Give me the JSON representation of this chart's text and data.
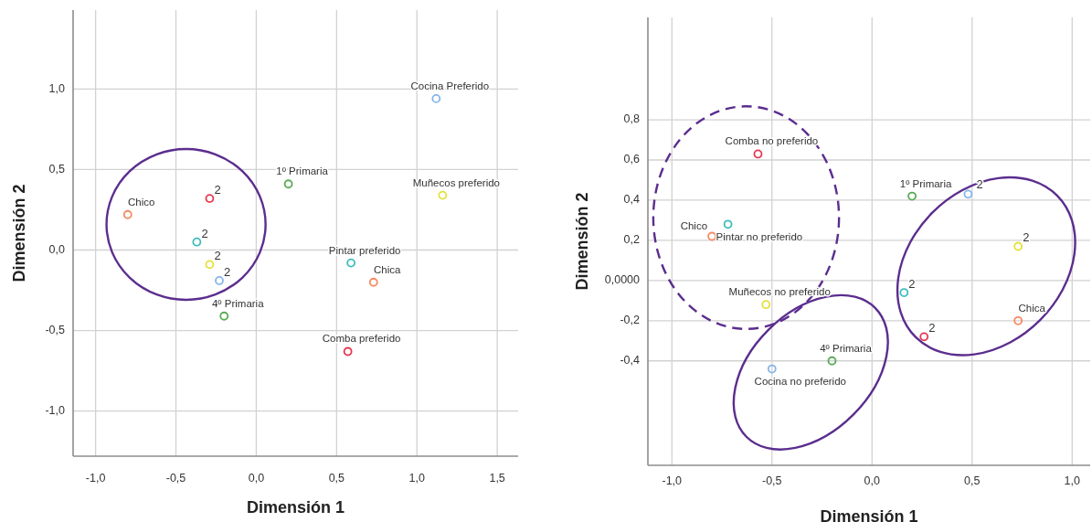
{
  "chart_data": [
    {
      "type": "scatter",
      "xlabel": "Dimensión 1",
      "ylabel": "Dimensión 2",
      "xlim": [
        -1.14,
        1.63
      ],
      "ylim": [
        -1.28,
        1.49
      ],
      "xticks": [
        {
          "value": -1,
          "label": "-1,0"
        },
        {
          "value": -0.5,
          "label": "-0,5"
        },
        {
          "value": 0,
          "label": "0,0"
        },
        {
          "value": 0.5,
          "label": "0,5"
        },
        {
          "value": 1,
          "label": "1,0"
        },
        {
          "value": 1.5,
          "label": "1,5"
        }
      ],
      "yticks": [
        {
          "value": -1,
          "label": "-1,0"
        },
        {
          "value": -0.5,
          "label": "-0,5"
        },
        {
          "value": 0,
          "label": "0,0"
        },
        {
          "value": 0.5,
          "label": "0,5"
        },
        {
          "value": 1,
          "label": "1,0"
        }
      ],
      "grid": true,
      "marker": "circle",
      "series": [
        {
          "color": "#f58a61",
          "x": [
            -0.8,
            0.73
          ],
          "values": [
            0.22,
            -0.2
          ]
        },
        {
          "color": "#e8364f",
          "x": [
            -0.29,
            0.57
          ],
          "values": [
            0.32,
            -0.63
          ]
        },
        {
          "color": "#3ebdbc",
          "x": [
            -0.37,
            0.59
          ],
          "values": [
            0.05,
            -0.08
          ]
        },
        {
          "color": "#e3e13a",
          "x": [
            -0.29,
            1.16
          ],
          "values": [
            -0.09,
            0.34
          ]
        },
        {
          "color": "#86b5e8",
          "x": [
            -0.23,
            1.12
          ],
          "values": [
            -0.19,
            0.94
          ]
        },
        {
          "color": "#5aab55",
          "x": [
            0.2,
            -0.2
          ],
          "values": [
            0.41,
            -0.41
          ]
        }
      ],
      "annotations": [
        {
          "text": "Chico",
          "x": -0.8,
          "y": 0.22
        },
        {
          "text": "Chica",
          "x": 0.73,
          "y": -0.2
        },
        {
          "text": "2",
          "x": -0.29,
          "y": 0.32
        },
        {
          "text": "Comba preferido",
          "x": 0.57,
          "y": -0.63
        },
        {
          "text": "2",
          "x": -0.37,
          "y": 0.05
        },
        {
          "text": "Pintar preferido",
          "x": 0.59,
          "y": -0.08
        },
        {
          "text": "2",
          "x": -0.29,
          "y": -0.09
        },
        {
          "text": "Muñecos preferido",
          "x": 1.16,
          "y": 0.34
        },
        {
          "text": "2",
          "x": -0.23,
          "y": -0.19
        },
        {
          "text": "Cocina Preferido",
          "x": 1.12,
          "y": 0.94
        },
        {
          "text": "1º Primaria",
          "x": 0.2,
          "y": 0.41
        },
        {
          "text": "4º Primaria",
          "x": -0.2,
          "y": -0.41
        }
      ]
    },
    {
      "type": "scatter",
      "xlabel": "Dimensión 1",
      "ylabel": "Dimensión 2",
      "xlim": [
        -1.12,
        1.09
      ],
      "ylim": [
        -0.92,
        1.31
      ],
      "xticks": [
        {
          "value": -1,
          "label": "-1,0"
        },
        {
          "value": -0.5,
          "label": "-0,5"
        },
        {
          "value": 0,
          "label": "0,0"
        },
        {
          "value": 0.5,
          "label": "0,5"
        },
        {
          "value": 1,
          "label": "1,0"
        }
      ],
      "yticks": [
        {
          "value": -0.4,
          "label": "-0,4"
        },
        {
          "value": -0.2,
          "label": "-0,2"
        },
        {
          "value": 0,
          "label": "0,0000"
        },
        {
          "value": 0.2,
          "label": "0,2"
        },
        {
          "value": 0.4,
          "label": "0,4"
        },
        {
          "value": 0.6,
          "label": "0,6"
        },
        {
          "value": 0.8,
          "label": "0,8"
        }
      ],
      "grid": true,
      "marker": "circle",
      "series": [
        {
          "color": "#f58a61",
          "x": [
            -0.8,
            0.73
          ],
          "values": [
            0.22,
            -0.2
          ]
        },
        {
          "color": "#e8364f",
          "x": [
            -0.57,
            0.26
          ],
          "values": [
            0.63,
            -0.28
          ]
        },
        {
          "color": "#3ebdbc",
          "x": [
            -0.72,
            0.16
          ],
          "values": [
            0.28,
            -0.06
          ]
        },
        {
          "color": "#e3e13a",
          "x": [
            -0.53,
            0.73
          ],
          "values": [
            -0.12,
            0.17
          ]
        },
        {
          "color": "#86b5e8",
          "x": [
            -0.5,
            0.48
          ],
          "values": [
            -0.44,
            0.43
          ]
        },
        {
          "color": "#5aab55",
          "x": [
            0.2,
            -0.2
          ],
          "values": [
            0.42,
            -0.4
          ]
        }
      ],
      "annotations": [
        {
          "text": "Chico",
          "x": -0.8,
          "y": 0.22
        },
        {
          "text": "Chica",
          "x": 0.73,
          "y": -0.2
        },
        {
          "text": "Comba no preferido",
          "x": -0.57,
          "y": 0.63
        },
        {
          "text": "2",
          "x": 0.26,
          "y": -0.28
        },
        {
          "text": "Pintar no preferido",
          "x": -0.72,
          "y": 0.28
        },
        {
          "text": "2",
          "x": 0.16,
          "y": -0.06
        },
        {
          "text": "Muñecos no preferido",
          "x": -0.53,
          "y": -0.12
        },
        {
          "text": "2",
          "x": 0.73,
          "y": 0.17
        },
        {
          "text": "Cocina no preferido",
          "x": -0.5,
          "y": -0.44
        },
        {
          "text": "2",
          "x": 0.48,
          "y": 0.43
        },
        {
          "text": "1º Primaria",
          "x": 0.2,
          "y": 0.42
        },
        {
          "text": "4º Primaria",
          "x": -0.2,
          "y": -0.4
        }
      ]
    }
  ]
}
